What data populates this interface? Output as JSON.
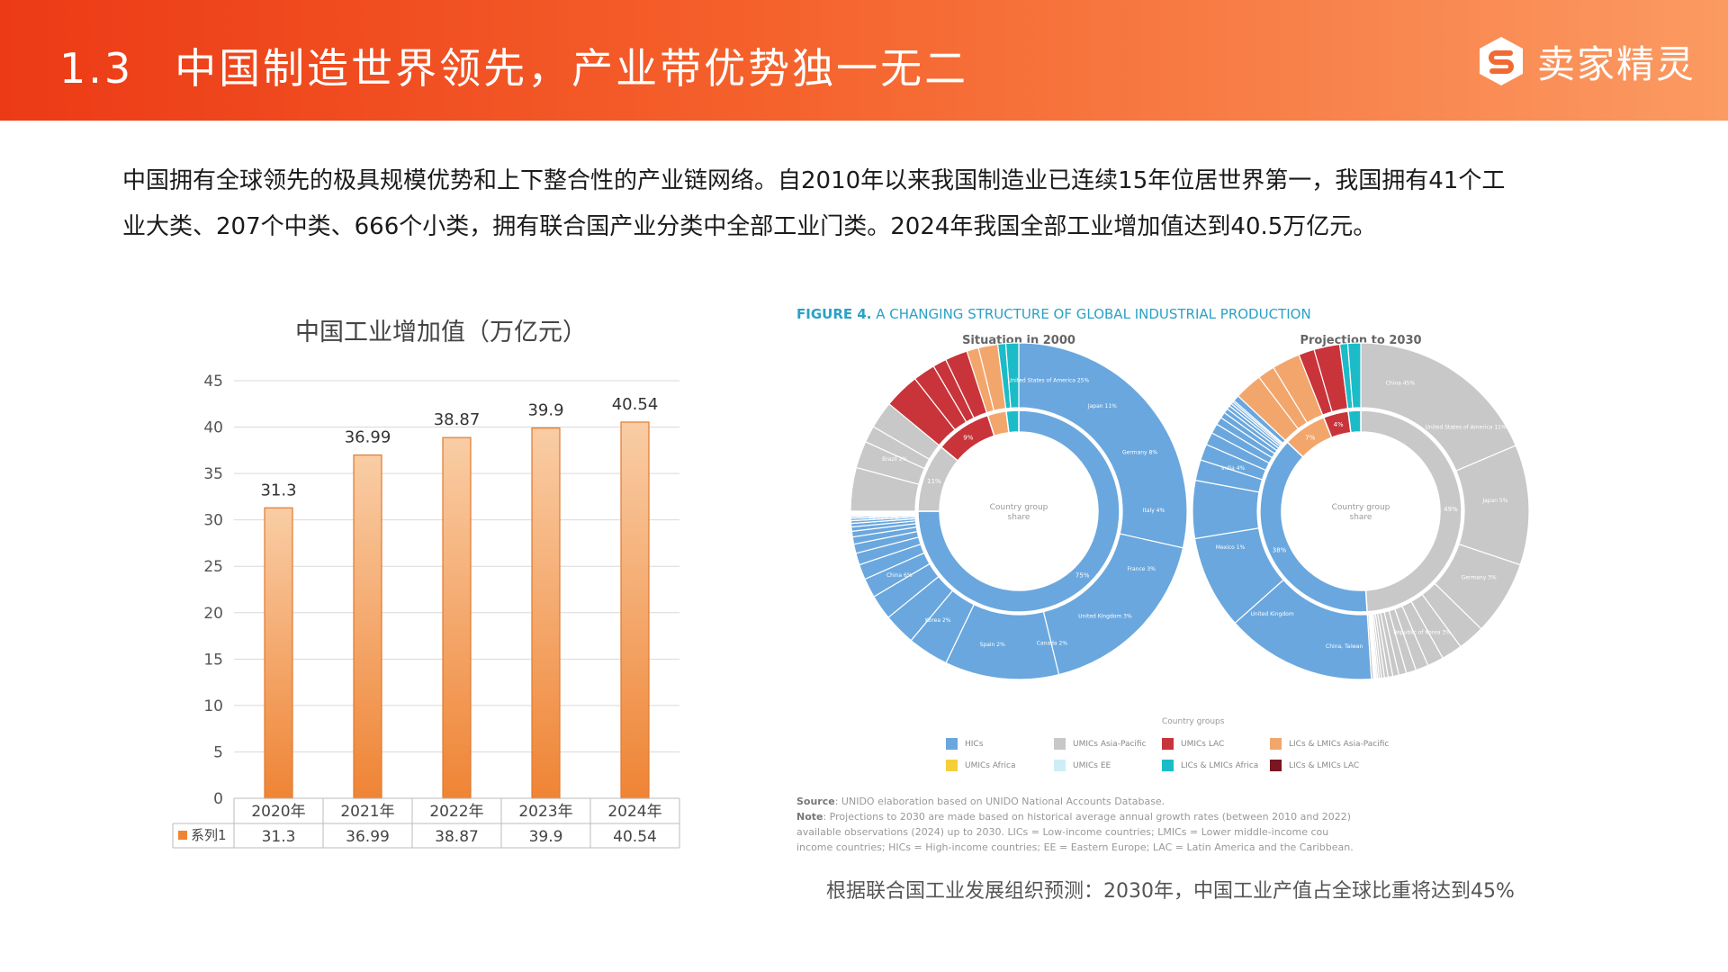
{
  "header": {
    "section_number": "1.3",
    "title": "中国制造世界领先，产业带优势独一无二",
    "logo_text": "卖家精灵"
  },
  "intro": {
    "line1": "中国拥有全球领先的极具规模优势和上下整合性的产业链网络。自2010年以来我国制造业已连续15年位居世界第一，我国拥有41个工",
    "line2": "业大类、207个中类、666个小类，拥有联合国产业分类中全部工业门类。2024年我国全部工业增加值达到40.5万亿元。"
  },
  "chart_data": [
    {
      "type": "bar",
      "title": "中国工业增加值（万亿元）",
      "categories": [
        "2020年",
        "2021年",
        "2022年",
        "2023年",
        "2024年"
      ],
      "series": [
        {
          "name": "系列1",
          "values": [
            31.3,
            36.99,
            38.87,
            39.9,
            40.54
          ]
        }
      ],
      "data_labels": [
        "31.3",
        "36.99",
        "38.87",
        "39.9",
        "40.54"
      ],
      "yticks": [
        0,
        5,
        10,
        15,
        20,
        25,
        30,
        35,
        40,
        45
      ],
      "ylim": [
        0,
        45
      ],
      "grid": true,
      "data_table": true,
      "colors": {
        "bar_top": "#f9cda5",
        "bar_bottom": "#ef8435",
        "bar_edge": "#e07a30"
      }
    },
    {
      "type": "pie",
      "title": "FIGURE 4. A CHANGING STRUCTURE OF GLOBAL INDUSTRIAL PRODUCTION",
      "title_prefix": "FIGURE 4.",
      "title_rest": "A CHANGING STRUCTURE OF GLOBAL INDUSTRIAL PRODUCTION",
      "center_label": "Country group share",
      "legend_title": "Country groups",
      "groups": [
        "HICs",
        "UMICs Asia-Pacific",
        "UMICs LAC",
        "LICs & LMICs Asia-Pacific",
        "UMICs Africa",
        "UMICs EE",
        "LICs & LMICs Africa",
        "LICs & LMICs LAC"
      ],
      "group_colors": [
        "#6aa7de",
        "#c8c8c8",
        "#c8343a",
        "#f2a66c",
        "#f5cf3a",
        "#cdeef6",
        "#1bbcc8",
        "#7a1522"
      ],
      "panels": [
        {
          "title": "Situation in 2000",
          "inner": [
            {
              "group": "HICs",
              "value": 75,
              "label": "75%"
            },
            {
              "group": "UMICs Asia-Pacific",
              "value": 11,
              "label": "11%"
            },
            {
              "group": "UMICs LAC",
              "value": 9,
              "label": "9%"
            },
            {
              "group": "LICs & LMICs Asia-Pacific",
              "value": 3,
              "label": ""
            },
            {
              "group": "LICs & LMICs Africa",
              "value": 2,
              "label": ""
            }
          ],
          "outer_labels": [
            "United States of America 25%",
            "Japan 11%",
            "Germany 8%",
            "Italy 4%",
            "France 3%",
            "United Kingdom 3%",
            "Canada 2%",
            "Spain 2%",
            "Korea 2%",
            "China 6%",
            "Mexico 3%",
            "Brazil 2%"
          ]
        },
        {
          "title": "Projection to 2030",
          "inner": [
            {
              "group": "UMICs Asia-Pacific",
              "value": 49,
              "label": "49%"
            },
            {
              "group": "HICs",
              "value": 38,
              "label": "38%"
            },
            {
              "group": "LICs & LMICs Asia-Pacific",
              "value": 7,
              "label": "7%"
            },
            {
              "group": "UMICs LAC",
              "value": 4,
              "label": "4%"
            },
            {
              "group": "LICs & LMICs Africa",
              "value": 2,
              "label": ""
            }
          ],
          "outer_labels": [
            "China 45%",
            "United States of America 11%",
            "Japan 5%",
            "Germany 3%",
            "Republic of Korea 3%",
            "China, Taiwan",
            "United Kingdom",
            "Mexico 1%",
            "India 4%"
          ]
        }
      ]
    }
  ],
  "figure": {
    "source_label": "Source",
    "source_text": ": UNIDO elaboration based on UNIDO National Accounts Database.",
    "note_label": "Note",
    "note_line1": ": Projections to 2030 are made based on historical average annual growth rates (between 2010 and 2022)",
    "note_line2": "available observations (2024) up to 2030. LICs = Low-income countries; LMICs = Lower middle-income cou",
    "note_line3": "income countries; HICs = High-income countries; EE = Eastern Europe; LAC = Latin America and the Caribbean."
  },
  "caption": "根据联合国工业发展组织预测：2030年，中国工业产值占全球比重将达到45%"
}
